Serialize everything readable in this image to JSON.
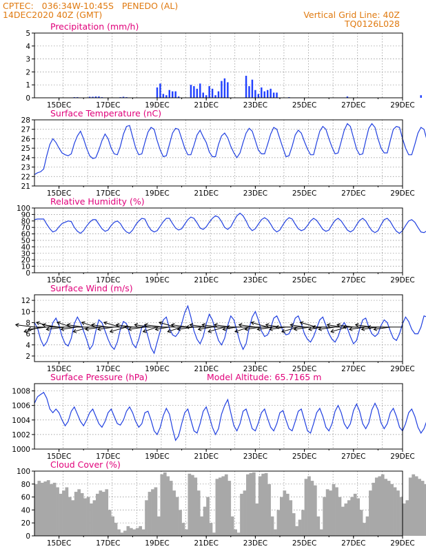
{
  "header": {
    "line1_left": "CPTEC:   036:34W-10:45S   PENEDO (AL)",
    "line2_left": "14DEC2020 40Z (GMT)",
    "line1_right": "Vertical Grid Line: 40Z",
    "line2_right": "TQ0126L028"
  },
  "colors": {
    "header": "#e07a10",
    "title": "#e0007a",
    "line": "#1f3fe0",
    "bar": "#2040ff",
    "cloud": "#a8a8a8",
    "arrow": "#000000",
    "grid": "#888888"
  },
  "chart_data": [
    {
      "type": "bar",
      "title": "Precipitation (mm/h)",
      "ylim": [
        0,
        5
      ],
      "yticks": [
        0,
        1,
        2,
        3,
        4,
        5
      ],
      "xlim": [
        14.0,
        29.0
      ],
      "xticks": [
        "15DEC",
        "17DEC",
        "19DEC",
        "21DEC",
        "23DEC",
        "25DEC",
        "27DEC",
        "29DEC"
      ],
      "x_day_start": 14.0,
      "x_day_step": 0.125,
      "values": [
        0,
        0,
        0,
        0,
        0,
        0,
        0,
        0,
        0,
        0,
        0,
        0,
        0,
        0.05,
        0.05,
        0,
        0,
        0,
        0.08,
        0.08,
        0.1,
        0.1,
        0.05,
        0,
        0,
        0,
        0,
        0,
        0.05,
        0.08,
        0.05,
        0,
        0,
        0,
        0,
        0,
        0,
        0,
        0,
        0,
        0.8,
        1.1,
        0.3,
        0.2,
        0.6,
        0.5,
        0.5,
        0.1,
        0,
        0,
        0,
        1.0,
        0.9,
        0.7,
        1.1,
        0.4,
        0.2,
        0.9,
        0.7,
        0.2,
        0.5,
        1.3,
        1.5,
        1.2,
        0,
        0,
        0,
        0,
        0,
        1.7,
        0.9,
        1.4,
        0.6,
        0.3,
        0.8,
        0.5,
        0.6,
        0.7,
        0.4,
        0.4,
        0,
        0,
        0,
        0.05,
        0,
        0,
        0,
        0,
        0,
        0,
        0,
        0,
        0,
        0,
        0,
        0,
        0,
        0,
        0,
        0,
        0,
        0,
        0.1,
        0,
        0,
        0,
        0,
        0,
        0,
        0,
        0,
        0,
        0,
        0,
        0,
        0,
        0,
        0,
        0,
        0,
        0,
        0,
        0,
        0,
        0,
        0,
        0.2,
        0
      ]
    },
    {
      "type": "line",
      "title": "Surface Temperature (nC)",
      "ylim": [
        21,
        28
      ],
      "yticks": [
        21,
        22,
        23,
        24,
        25,
        26,
        27,
        28
      ],
      "xlim": [
        14.0,
        29.0
      ],
      "xticks": [
        "15DEC",
        "17DEC",
        "19DEC",
        "21DEC",
        "23DEC",
        "25DEC",
        "27DEC",
        "29DEC"
      ],
      "x_day_start": 14.0,
      "x_day_step": 0.125,
      "values": [
        22.2,
        22.4,
        22.5,
        22.8,
        24.2,
        25.4,
        26.0,
        25.6,
        25.0,
        24.5,
        24.3,
        24.2,
        24.4,
        25.5,
        26.3,
        26.8,
        26.0,
        25.0,
        24.2,
        23.9,
        24.0,
        24.8,
        25.8,
        26.5,
        26.0,
        25.0,
        24.4,
        24.3,
        25.2,
        26.5,
        27.3,
        27.4,
        26.2,
        25.0,
        24.3,
        24.4,
        25.6,
        26.7,
        27.2,
        27.0,
        25.8,
        24.8,
        24.1,
        24.2,
        25.4,
        26.6,
        27.1,
        27.0,
        26.0,
        25.0,
        24.3,
        24.3,
        25.3,
        26.4,
        26.9,
        26.2,
        25.6,
        24.6,
        24.1,
        24.1,
        25.4,
        26.3,
        26.6,
        26.1,
        25.2,
        24.5,
        24.0,
        24.5,
        25.6,
        26.6,
        27.1,
        26.8,
        25.8,
        24.8,
        24.4,
        24.4,
        25.4,
        26.5,
        27.2,
        27.0,
        26.0,
        25.0,
        24.1,
        24.2,
        25.2,
        26.4,
        26.9,
        26.6,
        25.7,
        24.9,
        24.3,
        24.3,
        25.6,
        26.8,
        27.3,
        27.0,
        26.0,
        25.1,
        24.4,
        24.5,
        25.7,
        26.9,
        27.6,
        27.3,
        26.1,
        24.9,
        24.3,
        24.4,
        25.8,
        27.1,
        27.6,
        27.2,
        26.0,
        25.0,
        24.5,
        24.5,
        25.8,
        27.0,
        27.3,
        27.2,
        26.0,
        25.0,
        24.3,
        24.3,
        25.4,
        26.6,
        27.2,
        27.0,
        25.8
      ]
    },
    {
      "type": "line",
      "title": "Relative Humidity (%)",
      "ylim": [
        0,
        100
      ],
      "yticks": [
        0,
        10,
        20,
        30,
        40,
        50,
        60,
        70,
        80,
        90,
        100
      ],
      "xlim": [
        14.0,
        29.0
      ],
      "xticks": [
        "15DEC",
        "17DEC",
        "19DEC",
        "21DEC",
        "23DEC",
        "25DEC",
        "27DEC",
        "29DEC"
      ],
      "x_day_start": 14.0,
      "x_day_step": 0.125,
      "values": [
        82,
        83,
        83,
        83,
        75,
        68,
        63,
        65,
        71,
        76,
        78,
        80,
        79,
        70,
        64,
        61,
        65,
        72,
        78,
        82,
        82,
        75,
        68,
        64,
        66,
        73,
        78,
        80,
        76,
        68,
        63,
        61,
        66,
        74,
        80,
        84,
        83,
        73,
        66,
        63,
        65,
        72,
        79,
        84,
        84,
        76,
        69,
        66,
        68,
        75,
        82,
        86,
        84,
        77,
        69,
        67,
        71,
        78,
        84,
        88,
        86,
        79,
        70,
        67,
        71,
        80,
        88,
        92,
        88,
        80,
        70,
        65,
        68,
        75,
        82,
        85,
        82,
        75,
        67,
        63,
        66,
        74,
        81,
        85,
        83,
        75,
        68,
        65,
        67,
        73,
        80,
        84,
        81,
        74,
        67,
        64,
        66,
        74,
        81,
        84,
        80,
        73,
        66,
        63,
        66,
        74,
        81,
        84,
        80,
        72,
        65,
        62,
        65,
        74,
        82,
        84,
        79,
        71,
        64,
        61,
        65,
        73,
        80,
        82,
        78,
        70,
        63,
        62,
        65,
        74
      ]
    },
    {
      "type": "line",
      "title": "Surface Wind (m/s)",
      "ylim": [
        1,
        13
      ],
      "yticks": [
        2,
        4,
        6,
        8,
        10,
        12
      ],
      "xlim": [
        14.0,
        29.0
      ],
      "xticks": [
        "15DEC",
        "17DEC",
        "19DEC",
        "21DEC",
        "23DEC",
        "25DEC",
        "27DEC",
        "29DEC"
      ],
      "x_day_start": 14.0,
      "x_day_step": 0.125,
      "values": [
        8.0,
        7.0,
        5.0,
        3.8,
        4.5,
        6.0,
        8.0,
        8.8,
        7.5,
        5.5,
        4.2,
        3.8,
        5.2,
        7.8,
        9.0,
        8.0,
        6.5,
        5.0,
        3.2,
        4.0,
        6.5,
        8.5,
        8.0,
        6.5,
        5.0,
        3.8,
        3.2,
        4.5,
        6.8,
        8.2,
        7.8,
        6.0,
        4.2,
        3.5,
        5.0,
        7.2,
        7.5,
        5.5,
        3.5,
        2.5,
        4.5,
        6.5,
        8.5,
        9.0,
        7.0,
        5.8,
        5.5,
        6.2,
        7.8,
        9.8,
        11.0,
        9.0,
        6.5,
        5.0,
        4.2,
        5.5,
        7.8,
        9.5,
        8.5,
        6.5,
        4.8,
        4.0,
        5.2,
        7.5,
        9.2,
        8.5,
        6.5,
        4.5,
        3.2,
        4.2,
        7.0,
        9.0,
        10.0,
        8.5,
        6.5,
        5.5,
        5.8,
        7.0,
        8.8,
        9.2,
        8.0,
        6.5,
        5.8,
        6.0,
        7.2,
        8.8,
        9.2,
        7.8,
        6.0,
        5.0,
        4.5,
        5.5,
        7.0,
        8.5,
        9.0,
        7.5,
        6.0,
        5.0,
        4.5,
        5.5,
        7.2,
        8.0,
        7.0,
        5.5,
        4.2,
        4.8,
        6.8,
        8.5,
        8.8,
        7.2,
        6.0,
        5.5,
        6.0,
        7.5,
        8.5,
        8.0,
        6.5,
        5.2,
        4.8,
        6.0,
        7.8,
        9.0,
        8.2,
        6.8,
        6.0,
        6.0,
        7.2,
        9.2,
        9.0
      ],
      "vectors": {
        "level": 7.2,
        "day_start": 14.0,
        "day_step": 0.25,
        "u": [
          -8,
          -7,
          -8,
          -7,
          -7,
          -8,
          -6,
          -7,
          -7,
          -7,
          -6,
          -7,
          -7,
          -7,
          -7,
          -7,
          -7,
          -6,
          -7,
          -7,
          -6,
          -8,
          -6,
          -7,
          -6,
          -7,
          -7,
          -6,
          -7,
          -6,
          -7,
          -7,
          -7,
          -6,
          -7,
          -6,
          -7,
          -7,
          -7,
          -7,
          -6,
          -7,
          -7,
          -7,
          -6,
          -7,
          -7,
          -6,
          -7,
          -7,
          -6,
          -7,
          -7,
          -7,
          -7,
          -7,
          -7,
          -7,
          -7
        ],
        "v": [
          1,
          -2,
          -1,
          2,
          1,
          -1,
          2,
          -1,
          1,
          -2,
          2,
          -1,
          1,
          -1,
          2,
          -2,
          1,
          0,
          -1,
          1,
          -2,
          1,
          -1,
          2,
          -2,
          1,
          -1,
          0,
          1,
          -1,
          1,
          -2,
          1,
          -1,
          0,
          -2,
          1,
          -1,
          2,
          -1,
          1,
          -1,
          0,
          -2,
          1,
          -1,
          2,
          -1,
          0,
          -1,
          1,
          -2,
          1,
          0,
          -1,
          1,
          -1,
          0,
          -1
        ]
      }
    },
    {
      "type": "line",
      "title": "Surface Pressure (hPa)",
      "annotation": "Model Altitude: 65.7165 m",
      "ylim": [
        1000,
        1009
      ],
      "yticks": [
        1000,
        1002,
        1004,
        1006,
        1008
      ],
      "xlim": [
        14.0,
        29.0
      ],
      "xticks": [
        "15DEC",
        "17DEC",
        "19DEC",
        "21DEC",
        "23DEC",
        "25DEC",
        "27DEC",
        "29DEC"
      ],
      "x_day_start": 14.0,
      "x_day_step": 0.125,
      "values": [
        1006.3,
        1007.2,
        1007.5,
        1007.8,
        1007.0,
        1005.5,
        1005.0,
        1005.5,
        1005.0,
        1004.0,
        1003.2,
        1003.8,
        1005.2,
        1005.8,
        1004.8,
        1003.8,
        1003.2,
        1004.0,
        1005.0,
        1005.5,
        1004.5,
        1003.5,
        1003.0,
        1003.8,
        1005.0,
        1005.5,
        1004.5,
        1003.5,
        1003.3,
        1004.0,
        1005.2,
        1005.8,
        1005.0,
        1003.8,
        1003.0,
        1003.5,
        1005.0,
        1005.2,
        1004.0,
        1002.5,
        1002.0,
        1003.0,
        1004.6,
        1005.6,
        1004.8,
        1002.8,
        1001.2,
        1001.8,
        1003.5,
        1005.0,
        1005.5,
        1004.0,
        1002.5,
        1002.2,
        1003.5,
        1005.2,
        1005.8,
        1004.5,
        1003.0,
        1002.0,
        1002.8,
        1004.8,
        1006.0,
        1006.8,
        1005.0,
        1003.2,
        1002.5,
        1003.5,
        1005.2,
        1005.5,
        1004.2,
        1002.8,
        1002.5,
        1003.6,
        1005.0,
        1005.5,
        1004.2,
        1003.0,
        1002.5,
        1003.5,
        1005.0,
        1005.3,
        1004.0,
        1002.8,
        1002.5,
        1003.8,
        1005.2,
        1005.5,
        1004.0,
        1002.5,
        1002.2,
        1003.5,
        1005.0,
        1005.6,
        1004.5,
        1003.0,
        1002.5,
        1003.5,
        1005.2,
        1006.0,
        1005.0,
        1003.5,
        1002.8,
        1003.5,
        1005.3,
        1006.2,
        1005.2,
        1003.5,
        1002.8,
        1003.6,
        1005.4,
        1006.3,
        1005.4,
        1003.6,
        1002.8,
        1003.5,
        1005.0,
        1005.6,
        1004.5,
        1003.0,
        1002.5,
        1003.5,
        1005.0,
        1005.5,
        1004.5,
        1003.0,
        1002.2,
        1002.8,
        1004.0,
        1004.5,
        1004.2
      ]
    },
    {
      "type": "area",
      "title": "Cloud Cover (%)",
      "ylim": [
        0,
        100
      ],
      "yticks": [
        0,
        20,
        40,
        60,
        80,
        100
      ],
      "xlim": [
        14.0,
        29.0
      ],
      "xticks": [
        "15DEC",
        "17DEC",
        "19DEC",
        "21DEC",
        "23DEC",
        "25DEC",
        "27DEC",
        "29DEC"
      ],
      "x_day_start": 14.0,
      "x_day_step": 0.125,
      "values": [
        80,
        85,
        82,
        84,
        86,
        80,
        82,
        75,
        65,
        70,
        75,
        60,
        55,
        68,
        72,
        66,
        58,
        60,
        50,
        55,
        65,
        70,
        68,
        72,
        40,
        30,
        20,
        10,
        5,
        8,
        15,
        12,
        10,
        12,
        15,
        10,
        55,
        68,
        72,
        75,
        30,
        95,
        98,
        92,
        85,
        70,
        60,
        40,
        20,
        10,
        96,
        94,
        90,
        70,
        30,
        45,
        60,
        20,
        5,
        88,
        90,
        92,
        95,
        85,
        30,
        10,
        5,
        65,
        70,
        95,
        97,
        98,
        50,
        92,
        96,
        97,
        80,
        30,
        10,
        40,
        60,
        70,
        65,
        55,
        35,
        15,
        25,
        40,
        88,
        92,
        85,
        78,
        30,
        10,
        60,
        72,
        70,
        80,
        75,
        60,
        45,
        50,
        55,
        60,
        65,
        58,
        40,
        20,
        30,
        70,
        82,
        90,
        92,
        95,
        88,
        85,
        80,
        75,
        70,
        60,
        50,
        55,
        90,
        95,
        92,
        88,
        85,
        80,
        70,
        62,
        70
      ]
    }
  ]
}
